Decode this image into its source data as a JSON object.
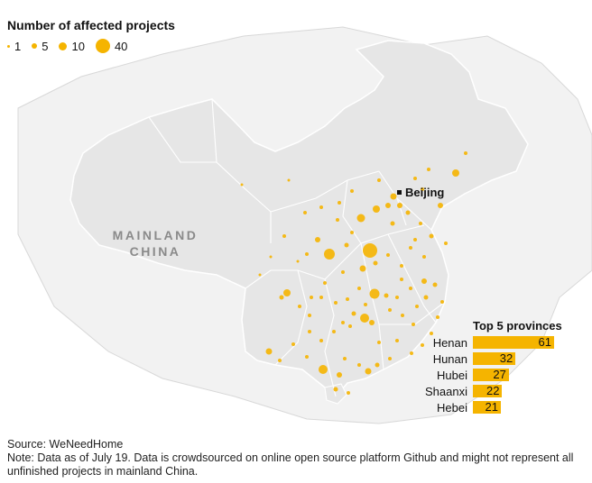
{
  "legend": {
    "title": "Number of affected projects",
    "items": [
      {
        "label": "1",
        "value": 1
      },
      {
        "label": "5",
        "value": 5
      },
      {
        "label": "10",
        "value": 10
      },
      {
        "label": "40",
        "value": 40
      }
    ]
  },
  "map": {
    "region_label_line1": "MAINLAND",
    "region_label_line2": "CHINA",
    "capital_label": "Beijing",
    "land_color": "#e6e6e6",
    "outside_color": "#f2f2f2",
    "dot_color": "#f5b400"
  },
  "top5": {
    "title": "Top 5 provinces",
    "rows": [
      {
        "name": "Henan",
        "value": 61
      },
      {
        "name": "Hunan",
        "value": 32
      },
      {
        "name": "Hubei",
        "value": 27
      },
      {
        "name": "Shaanxi",
        "value": 22
      },
      {
        "name": "Hebei",
        "value": 21
      }
    ]
  },
  "footer": {
    "source": "Source: WeNeedHome",
    "note": "Note: Data as of July 19. Data is crowdsourced on online open source platform Github and might not represent all unfinished projects in mainland China."
  }
}
